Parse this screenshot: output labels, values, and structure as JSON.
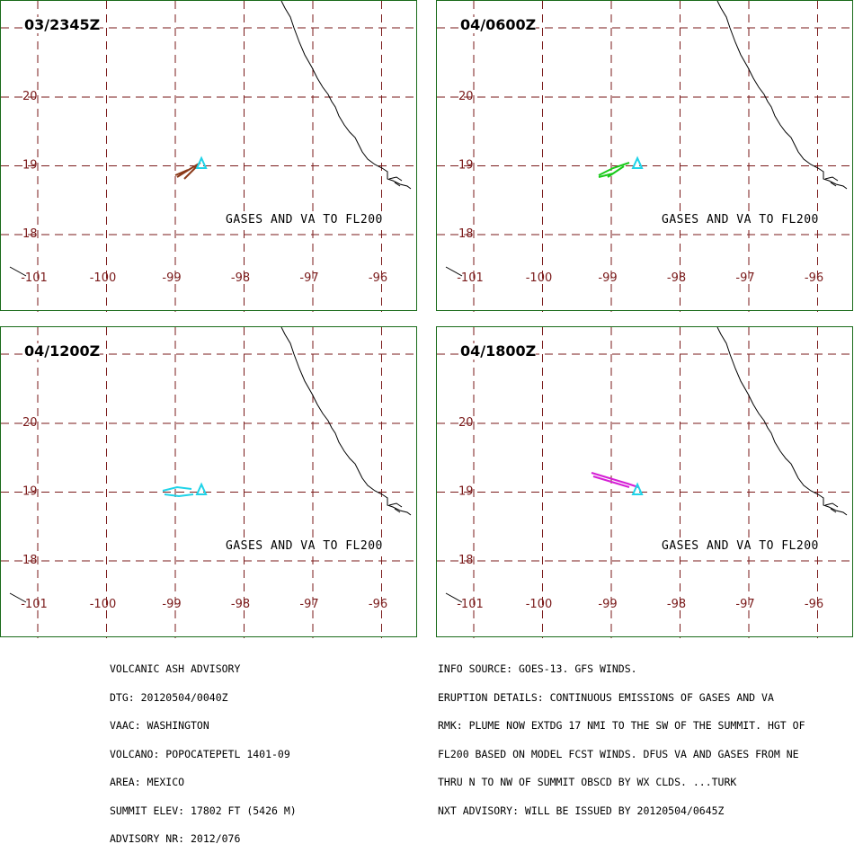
{
  "panels": [
    {
      "time": "03/2345Z",
      "note": "GASES AND VA TO FL200",
      "plume_color": "#8b3a1a"
    },
    {
      "time": "04/0600Z",
      "note": "GASES AND VA TO FL200",
      "plume_color": "#19c919"
    },
    {
      "time": "04/1200Z",
      "note": "GASES AND VA TO FL200",
      "plume_color": "#1fd3e8"
    },
    {
      "time": "04/1800Z",
      "note": "GASES AND VA TO FL200",
      "plume_color": "#d51fd5"
    }
  ],
  "map": {
    "lat_labels": [
      "20",
      "19",
      "18"
    ],
    "lon_labels": [
      "-101",
      "-100",
      "-99",
      "-98",
      "-97",
      "-96"
    ],
    "lat_values": [
      20,
      19,
      18
    ],
    "lon_values": [
      -101,
      -100,
      -99,
      -98,
      -97,
      -96
    ],
    "grid_color": "#7a1a1a",
    "volcano_marker_color": "#1fd3e8",
    "volcano": {
      "lat": 19.02,
      "lon": -98.62
    }
  },
  "advisory_left": [
    "VOLCANIC ASH ADVISORY",
    "DTG: 20120504/0040Z",
    "VAAC: WASHINGTON",
    "VOLCANO: POPOCATEPETL 1401-09",
    "AREA: MEXICO",
    "SUMMIT ELEV: 17802 FT (5426 M)",
    "ADVISORY NR: 2012/076"
  ],
  "advisory_right": [
    "INFO SOURCE: GOES-13. GFS WINDS.",
    "ERUPTION DETAILS: CONTINUOUS EMISSIONS OF GASES AND VA",
    "RMK: PLUME NOW EXTDG 17 NMI TO THE SW OF THE SUMMIT. HGT OF",
    "FL200 BASED ON MODEL FCST WINDS. DFUS VA AND GASES FROM NE",
    "THRU N TO NW OF SUMMIT OBSCD BY WX CLDS. ...TURK",
    "NXT ADVISORY: WILL BE ISSUED BY 20120504/0645Z"
  ]
}
